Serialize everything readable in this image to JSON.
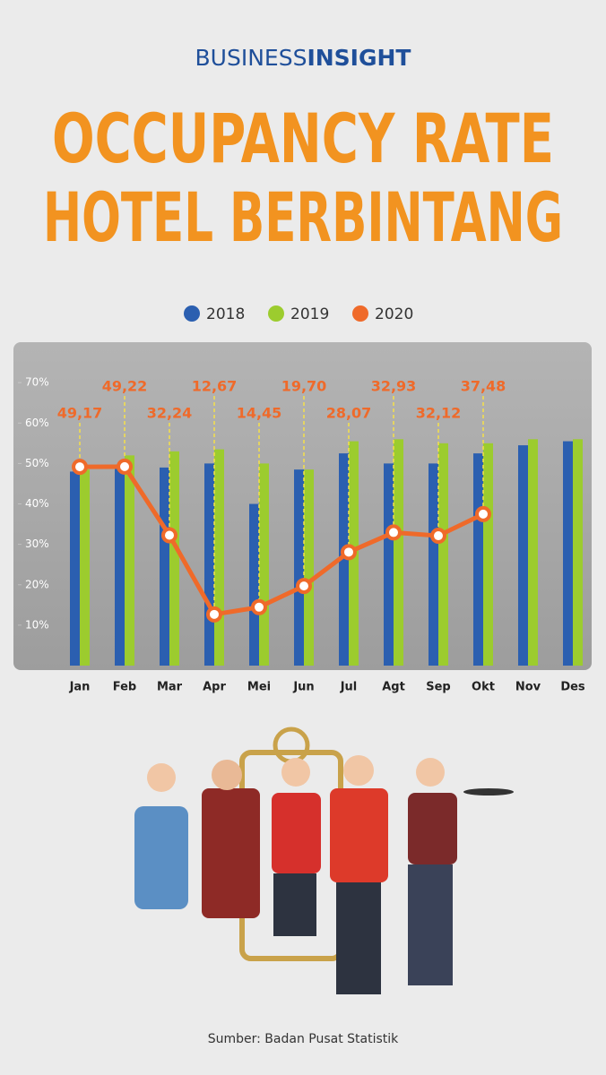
{
  "brand": [
    "BUSINESS",
    "INSIGHT"
  ],
  "source": "Sumber: Badan Pusat Statistik",
  "chart_data": {
    "type": "bar",
    "title": [
      "OCCUPANCY RATE",
      "HOTEL BERBINTANG"
    ],
    "categories": [
      "Jan",
      "Feb",
      "Mar",
      "Apr",
      "Mei",
      "Jun",
      "Jul",
      "Agt",
      "Sep",
      "Okt",
      "Nov",
      "Des"
    ],
    "series": [
      {
        "name": "2018",
        "color": "#2b5fb0",
        "values": [
          48,
          49,
          49,
          50,
          40,
          48.5,
          52.5,
          50,
          50,
          52.5,
          54.5,
          55.5
        ]
      },
      {
        "name": "2019",
        "color": "#9ccc2e",
        "values": [
          48.5,
          52,
          53,
          53.5,
          50,
          48.5,
          55.5,
          56,
          55,
          55,
          56,
          56
        ]
      },
      {
        "name": "2020",
        "type": "line",
        "color": "#ef6a2a",
        "values": [
          49.17,
          49.22,
          32.24,
          12.67,
          14.45,
          19.7,
          28.07,
          32.93,
          32.12,
          37.48,
          null,
          null
        ],
        "value_labels": [
          "49,17",
          "49,22",
          "32,24",
          "12,67",
          "14,45",
          "19,70",
          "28,07",
          "32,93",
          "32,12",
          "37,48",
          null,
          null
        ]
      }
    ],
    "ylim": [
      0,
      80
    ],
    "yticks": [
      {
        "value": 10,
        "label": "10%"
      },
      {
        "value": 20,
        "label": "20%"
      },
      {
        "value": 30,
        "label": "30%"
      },
      {
        "value": 40,
        "label": "40%"
      },
      {
        "value": 50,
        "label": "50%"
      },
      {
        "value": 60,
        "label": "60%"
      },
      {
        "value": 70,
        "label": "70%"
      }
    ]
  }
}
